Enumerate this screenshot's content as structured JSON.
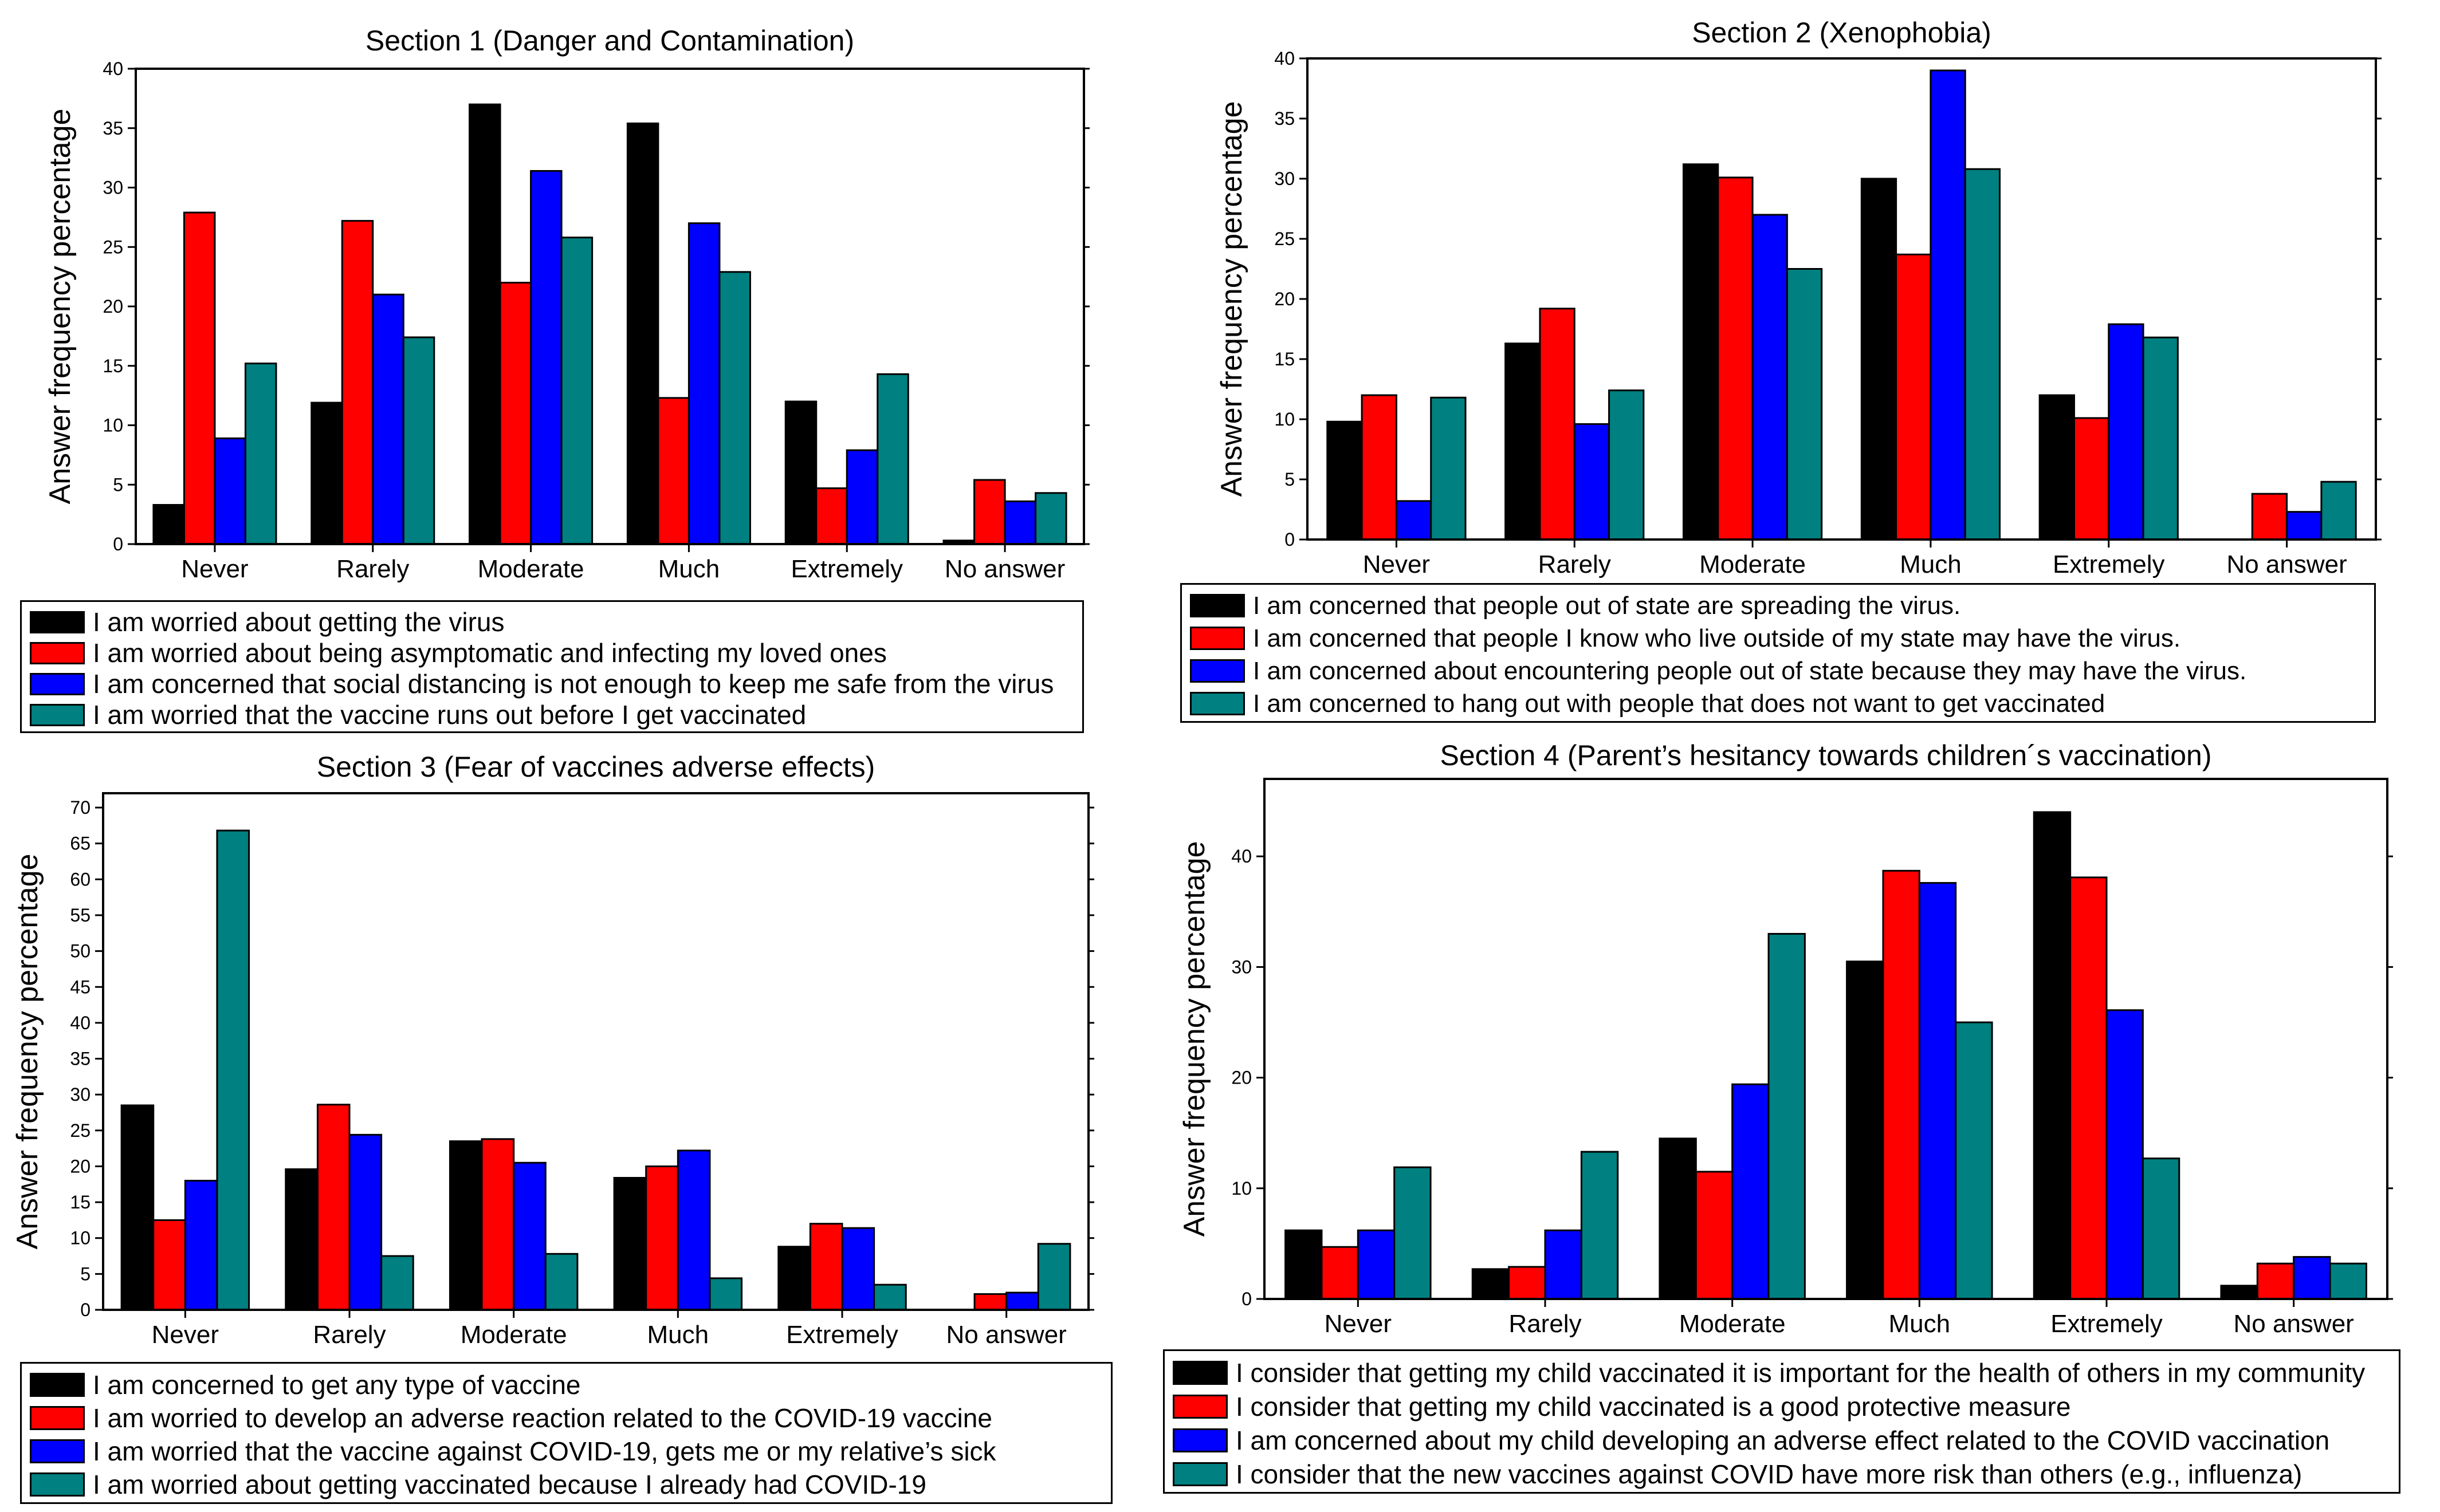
{
  "colors": {
    "black": "#000000",
    "red": "#ff0000",
    "blue": "#0000ff",
    "teal": "#008080"
  },
  "chart_data": [
    {
      "type": "bar",
      "title": "Section 1 (Danger and Contamination)",
      "xlabel": "",
      "ylabel": "Answer frequency percentage",
      "categories": [
        "Never",
        "Rarely",
        "Moderate",
        "Much",
        "Extremely",
        "No answer"
      ],
      "ylim": [
        0,
        40
      ],
      "yticks": [
        0,
        5,
        10,
        15,
        20,
        25,
        30,
        35,
        40
      ],
      "series": [
        {
          "name": "I am worried about getting the virus",
          "color": "#000000",
          "values": [
            3.3,
            11.9,
            37.0,
            35.4,
            12.0,
            0.3
          ]
        },
        {
          "name": "I am worried about being asymptomatic and infecting my loved ones",
          "color": "#ff0000",
          "values": [
            27.9,
            27.2,
            22.0,
            12.3,
            4.7,
            5.4
          ]
        },
        {
          "name": "I am concerned that social distancing is not enough to keep me safe from the virus",
          "color": "#0000ff",
          "values": [
            8.9,
            21.0,
            31.4,
            27.0,
            7.9,
            3.6
          ]
        },
        {
          "name": "I am worried that the vaccine runs out before I get vaccinated",
          "color": "#008080",
          "values": [
            15.2,
            17.4,
            25.8,
            22.9,
            14.3,
            4.3
          ]
        }
      ]
    },
    {
      "type": "bar",
      "title": "Section 2 (Xenophobia)",
      "xlabel": "",
      "ylabel": "Answer frequency percentage",
      "categories": [
        "Never",
        "Rarely",
        "Moderate",
        "Much",
        "Extremely",
        "No answer"
      ],
      "ylim": [
        0,
        40
      ],
      "yticks": [
        0,
        5,
        10,
        15,
        20,
        25,
        30,
        35,
        40
      ],
      "series": [
        {
          "name": "I am concerned that people out of state are spreading the virus.",
          "color": "#000000",
          "values": [
            9.8,
            16.3,
            31.2,
            30.0,
            12.0,
            0
          ]
        },
        {
          "name": "I am concerned that people I know who live outside of my state may have the virus.",
          "color": "#ff0000",
          "values": [
            12.0,
            19.2,
            30.1,
            23.7,
            10.1,
            3.8
          ]
        },
        {
          "name": "I am concerned about encountering people out of state because they may have the virus.",
          "color": "#0000ff",
          "values": [
            3.2,
            9.6,
            27.0,
            39.0,
            17.9,
            2.3
          ]
        },
        {
          "name": "I am concerned to hang out with people that does not want to get vaccinated",
          "color": "#008080",
          "values": [
            11.8,
            12.4,
            22.5,
            30.8,
            16.8,
            4.8
          ]
        }
      ]
    },
    {
      "type": "bar",
      "title": "Section 3 (Fear of vaccines adverse effects)",
      "xlabel": "",
      "ylabel": "Answer frequency percentage",
      "categories": [
        "Never",
        "Rarely",
        "Moderate",
        "Much",
        "Extremely",
        "No answer"
      ],
      "ylim": [
        0,
        72
      ],
      "yticks": [
        0,
        5,
        10,
        15,
        20,
        25,
        30,
        35,
        40,
        45,
        50,
        55,
        60,
        65,
        70
      ],
      "series": [
        {
          "name": "I am concerned to get any type of vaccine",
          "color": "#000000",
          "values": [
            28.5,
            19.6,
            23.5,
            18.4,
            8.8,
            0
          ]
        },
        {
          "name": "I am worried to develop an adverse reaction related to the COVID-19 vaccine",
          "color": "#ff0000",
          "values": [
            12.5,
            28.6,
            23.8,
            20.0,
            12.0,
            2.2
          ]
        },
        {
          "name": "I am worried that the vaccine against COVID-19, gets me or my relative’s sick",
          "color": "#0000ff",
          "values": [
            18.0,
            24.4,
            20.5,
            22.2,
            11.4,
            2.4
          ]
        },
        {
          "name": "I am worried about getting vaccinated because I already had COVID-19",
          "color": "#008080",
          "values": [
            66.8,
            7.5,
            7.8,
            4.4,
            3.5,
            9.2
          ]
        }
      ]
    },
    {
      "type": "bar",
      "title": "Section 4 (Parent’s hesitancy towards children´s vaccination)",
      "xlabel": "",
      "ylabel": "Answer frequency percentage",
      "categories": [
        "Never",
        "Rarely",
        "Moderate",
        "Much",
        "Extremely",
        "No answer"
      ],
      "ylim": [
        0,
        47
      ],
      "yticks": [
        0,
        10,
        20,
        30,
        40
      ],
      "series": [
        {
          "name": "I consider that getting my child vaccinated it is important for the health of others in my community",
          "color": "#000000",
          "values": [
            6.2,
            2.7,
            14.5,
            30.5,
            44.0,
            1.2
          ]
        },
        {
          "name": "I consider that getting my child vaccinated is a good protective measure",
          "color": "#ff0000",
          "values": [
            4.7,
            2.9,
            11.5,
            38.7,
            38.1,
            3.2
          ]
        },
        {
          "name": "I am concerned about my child developing an adverse effect related to the COVID vaccination",
          "color": "#0000ff",
          "values": [
            6.2,
            6.2,
            19.4,
            37.6,
            26.1,
            3.8
          ]
        },
        {
          "name": "I consider that the new vaccines against COVID have more risk than others (e.g., influenza)",
          "color": "#008080",
          "values": [
            11.9,
            13.3,
            33.0,
            25.0,
            12.7,
            3.2
          ]
        }
      ]
    }
  ]
}
